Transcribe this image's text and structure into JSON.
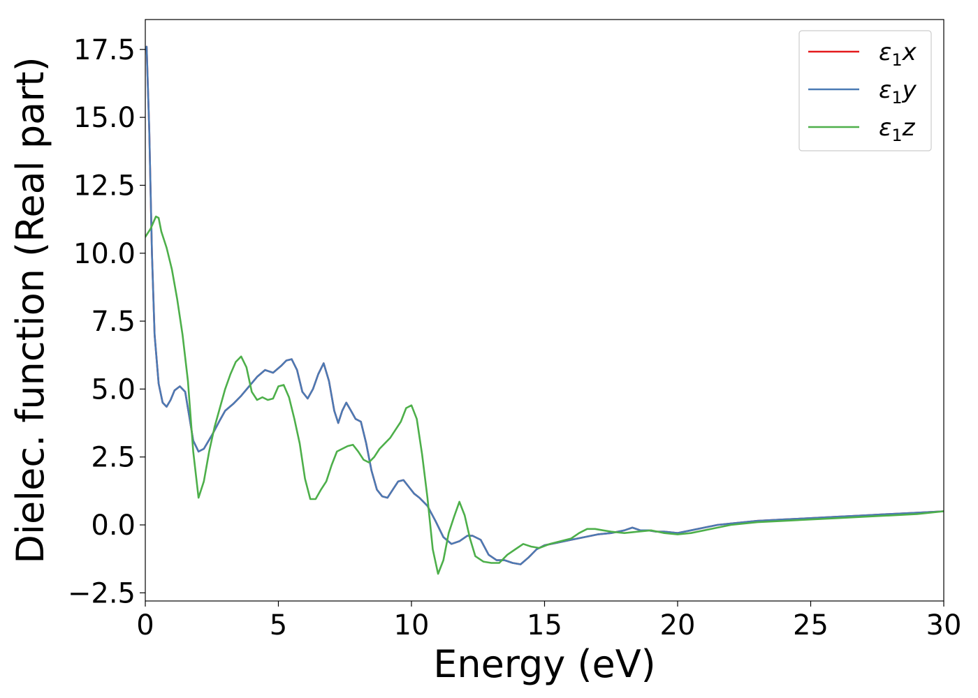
{
  "chart_data": {
    "type": "line",
    "title": "",
    "xlabel": "Energy (eV)",
    "ylabel": "Dielec. function (Real part)",
    "xlim": [
      0,
      30
    ],
    "ylim": [
      -2.8,
      18.6
    ],
    "xticks": [
      0,
      5,
      10,
      15,
      20,
      25,
      30
    ],
    "xtick_labels": [
      "0",
      "5",
      "10",
      "15",
      "20",
      "25",
      "30"
    ],
    "yticks": [
      -2.5,
      0.0,
      2.5,
      5.0,
      7.5,
      10.0,
      12.5,
      15.0,
      17.5
    ],
    "ytick_labels": [
      "−2.5",
      "0.0",
      "2.5",
      "5.0",
      "7.5",
      "10.0",
      "12.5",
      "15.0",
      "17.5"
    ],
    "grid": false,
    "legend_position": "top-right",
    "series": [
      {
        "name": "ε1x",
        "legend_main": "ε",
        "legend_sub": "1",
        "legend_var": "x",
        "color": "#e41a1c",
        "x": [
          0,
          0.05,
          0.15,
          0.25,
          0.35,
          0.5,
          0.65,
          0.8,
          0.95,
          1.1,
          1.3,
          1.5,
          1.65,
          1.8,
          2.0,
          2.2,
          2.5,
          2.8,
          3.0,
          3.3,
          3.6,
          3.9,
          4.2,
          4.5,
          4.8,
          5.1,
          5.3,
          5.5,
          5.7,
          5.9,
          6.1,
          6.3,
          6.5,
          6.7,
          6.9,
          7.1,
          7.25,
          7.4,
          7.55,
          7.7,
          7.9,
          8.1,
          8.3,
          8.5,
          8.7,
          8.9,
          9.1,
          9.3,
          9.5,
          9.7,
          9.9,
          10.1,
          10.3,
          10.6,
          10.9,
          11.2,
          11.5,
          11.8,
          12.1,
          12.3,
          12.6,
          12.9,
          13.2,
          13.5,
          13.8,
          14.1,
          14.4,
          14.7,
          15.0,
          15.5,
          16.0,
          16.5,
          17.0,
          17.5,
          18.0,
          18.3,
          18.6,
          18.9,
          19.2,
          19.5,
          20.0,
          20.5,
          21.0,
          21.5,
          22.0,
          23.0,
          24.0,
          25.0,
          26.0,
          27.0,
          28.0,
          29.0,
          30.0
        ],
        "y": [
          17.5,
          17.6,
          14.5,
          10.0,
          7.0,
          5.2,
          4.5,
          4.35,
          4.6,
          4.95,
          5.1,
          4.9,
          4.0,
          3.1,
          2.7,
          2.8,
          3.3,
          3.85,
          4.2,
          4.45,
          4.75,
          5.1,
          5.45,
          5.7,
          5.6,
          5.85,
          6.05,
          6.1,
          5.7,
          4.9,
          4.65,
          5.0,
          5.55,
          5.95,
          5.3,
          4.2,
          3.75,
          4.2,
          4.5,
          4.25,
          3.9,
          3.8,
          3.0,
          2.0,
          1.3,
          1.05,
          1.0,
          1.3,
          1.6,
          1.65,
          1.4,
          1.15,
          1.0,
          0.7,
          0.15,
          -0.45,
          -0.7,
          -0.6,
          -0.4,
          -0.4,
          -0.55,
          -1.1,
          -1.3,
          -1.3,
          -1.4,
          -1.45,
          -1.2,
          -0.9,
          -0.75,
          -0.65,
          -0.55,
          -0.45,
          -0.35,
          -0.3,
          -0.2,
          -0.1,
          -0.2,
          -0.2,
          -0.25,
          -0.25,
          -0.3,
          -0.2,
          -0.1,
          0.0,
          0.05,
          0.15,
          0.2,
          0.25,
          0.3,
          0.35,
          0.4,
          0.45,
          0.5
        ]
      },
      {
        "name": "ε1y",
        "legend_main": "ε",
        "legend_sub": "1",
        "legend_var": "y",
        "color": "#4a7ab4",
        "x": [
          0,
          0.05,
          0.15,
          0.25,
          0.35,
          0.5,
          0.65,
          0.8,
          0.95,
          1.1,
          1.3,
          1.5,
          1.65,
          1.8,
          2.0,
          2.2,
          2.5,
          2.8,
          3.0,
          3.3,
          3.6,
          3.9,
          4.2,
          4.5,
          4.8,
          5.1,
          5.3,
          5.5,
          5.7,
          5.9,
          6.1,
          6.3,
          6.5,
          6.7,
          6.9,
          7.1,
          7.25,
          7.4,
          7.55,
          7.7,
          7.9,
          8.1,
          8.3,
          8.5,
          8.7,
          8.9,
          9.1,
          9.3,
          9.5,
          9.7,
          9.9,
          10.1,
          10.3,
          10.6,
          10.9,
          11.2,
          11.5,
          11.8,
          12.1,
          12.3,
          12.6,
          12.9,
          13.2,
          13.5,
          13.8,
          14.1,
          14.4,
          14.7,
          15.0,
          15.5,
          16.0,
          16.5,
          17.0,
          17.5,
          18.0,
          18.3,
          18.6,
          18.9,
          19.2,
          19.5,
          20.0,
          20.5,
          21.0,
          21.5,
          22.0,
          23.0,
          24.0,
          25.0,
          26.0,
          27.0,
          28.0,
          29.0,
          30.0
        ],
        "y": [
          17.5,
          17.6,
          14.5,
          10.0,
          7.0,
          5.2,
          4.5,
          4.35,
          4.6,
          4.95,
          5.1,
          4.9,
          4.0,
          3.1,
          2.7,
          2.8,
          3.3,
          3.85,
          4.2,
          4.45,
          4.75,
          5.1,
          5.45,
          5.7,
          5.6,
          5.85,
          6.05,
          6.1,
          5.7,
          4.9,
          4.65,
          5.0,
          5.55,
          5.95,
          5.3,
          4.2,
          3.75,
          4.2,
          4.5,
          4.25,
          3.9,
          3.8,
          3.0,
          2.0,
          1.3,
          1.05,
          1.0,
          1.3,
          1.6,
          1.65,
          1.4,
          1.15,
          1.0,
          0.7,
          0.15,
          -0.45,
          -0.7,
          -0.6,
          -0.4,
          -0.4,
          -0.55,
          -1.1,
          -1.3,
          -1.3,
          -1.4,
          -1.45,
          -1.2,
          -0.9,
          -0.75,
          -0.65,
          -0.55,
          -0.45,
          -0.35,
          -0.3,
          -0.2,
          -0.1,
          -0.2,
          -0.2,
          -0.25,
          -0.25,
          -0.3,
          -0.2,
          -0.1,
          0.0,
          0.05,
          0.15,
          0.2,
          0.25,
          0.3,
          0.35,
          0.4,
          0.45,
          0.5
        ]
      },
      {
        "name": "ε1z",
        "legend_main": "ε",
        "legend_sub": "1",
        "legend_var": "z",
        "color": "#4daf4a",
        "x": [
          0,
          0.2,
          0.4,
          0.5,
          0.6,
          0.8,
          1.0,
          1.2,
          1.4,
          1.6,
          1.8,
          2.0,
          2.2,
          2.4,
          2.6,
          2.8,
          3.0,
          3.2,
          3.4,
          3.6,
          3.8,
          4.0,
          4.2,
          4.4,
          4.6,
          4.8,
          5.0,
          5.2,
          5.4,
          5.6,
          5.8,
          6.0,
          6.2,
          6.4,
          6.6,
          6.8,
          7.0,
          7.2,
          7.4,
          7.6,
          7.8,
          8.0,
          8.2,
          8.4,
          8.6,
          8.8,
          9.0,
          9.2,
          9.4,
          9.6,
          9.8,
          10.0,
          10.2,
          10.4,
          10.6,
          10.8,
          11.0,
          11.2,
          11.4,
          11.6,
          11.8,
          12.0,
          12.2,
          12.4,
          12.7,
          13.0,
          13.3,
          13.6,
          13.9,
          14.2,
          14.5,
          14.8,
          15.2,
          15.6,
          16.0,
          16.3,
          16.6,
          16.9,
          17.2,
          17.5,
          18.0,
          18.5,
          19.0,
          19.5,
          20.0,
          20.5,
          21.0,
          21.5,
          22.0,
          23.0,
          24.0,
          25.0,
          26.0,
          27.0,
          28.0,
          29.0,
          30.0
        ],
        "y": [
          10.6,
          10.9,
          11.35,
          11.3,
          10.8,
          10.2,
          9.4,
          8.3,
          7.0,
          5.3,
          2.7,
          1.0,
          1.6,
          2.7,
          3.6,
          4.3,
          5.0,
          5.55,
          6.0,
          6.2,
          5.8,
          4.9,
          4.6,
          4.7,
          4.6,
          4.65,
          5.1,
          5.15,
          4.7,
          3.9,
          3.0,
          1.7,
          0.95,
          0.95,
          1.3,
          1.6,
          2.2,
          2.7,
          2.8,
          2.9,
          2.95,
          2.7,
          2.4,
          2.3,
          2.5,
          2.8,
          3.0,
          3.2,
          3.5,
          3.8,
          4.3,
          4.4,
          3.9,
          2.6,
          1.0,
          -0.9,
          -1.8,
          -1.3,
          -0.3,
          0.3,
          0.85,
          0.35,
          -0.5,
          -1.15,
          -1.35,
          -1.4,
          -1.4,
          -1.1,
          -0.9,
          -0.7,
          -0.8,
          -0.85,
          -0.7,
          -0.6,
          -0.5,
          -0.3,
          -0.15,
          -0.15,
          -0.2,
          -0.25,
          -0.3,
          -0.25,
          -0.2,
          -0.3,
          -0.35,
          -0.3,
          -0.2,
          -0.1,
          0.0,
          0.1,
          0.15,
          0.2,
          0.25,
          0.3,
          0.35,
          0.4,
          0.5
        ]
      }
    ]
  }
}
